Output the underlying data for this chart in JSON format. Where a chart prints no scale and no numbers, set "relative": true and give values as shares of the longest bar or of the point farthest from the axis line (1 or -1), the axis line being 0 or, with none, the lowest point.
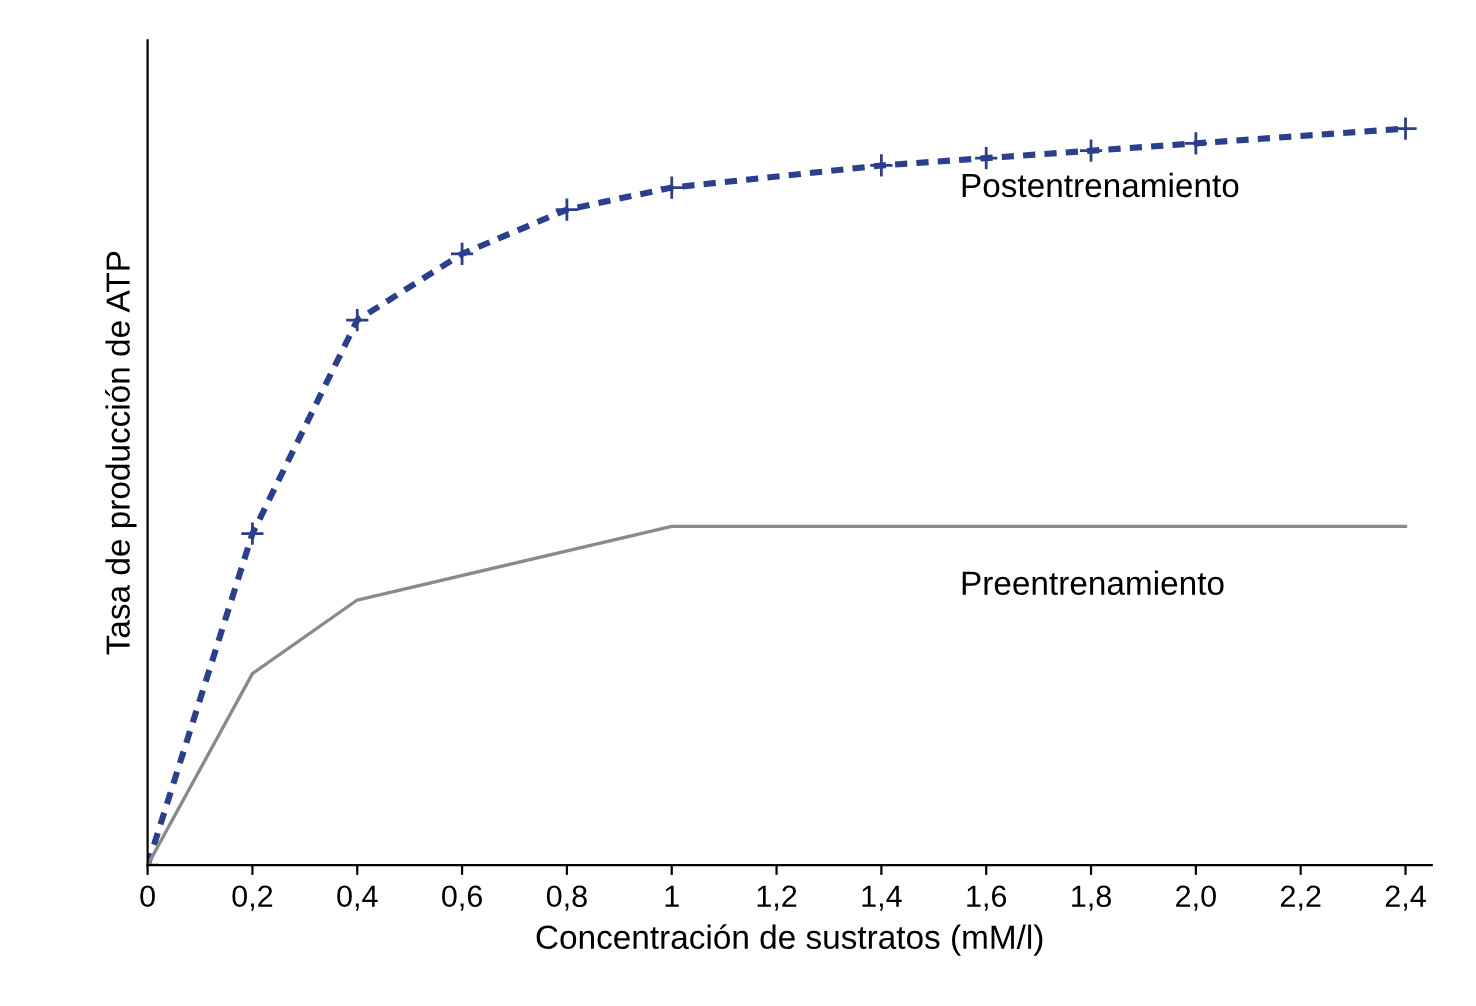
{
  "chart_data": {
    "type": "line",
    "relative": true,
    "xlabel": "Concentración de sustratos (mM/l)",
    "ylabel": "Tasa de producción de ATP",
    "xlim": [
      0,
      2.45
    ],
    "xticks": [
      0,
      {
        "value": 0.2,
        "label": "0,2"
      },
      {
        "value": 0.4,
        "label": "0,4"
      },
      {
        "value": 0.6,
        "label": "0,6"
      },
      {
        "value": 0.8,
        "label": "0,8"
      },
      1,
      {
        "value": 1.2,
        "label": "1,2"
      },
      {
        "value": 1.4,
        "label": "1,4"
      },
      {
        "value": 1.6,
        "label": "1,6"
      },
      {
        "value": 1.8,
        "label": "1,8"
      },
      {
        "value": 2.0,
        "label": "2,0"
      },
      {
        "value": 2.2,
        "label": "2,2"
      },
      {
        "value": 2.4,
        "label": "2,4"
      }
    ],
    "tick_labels": "x",
    "grid": false,
    "legend": false,
    "series": [
      {
        "name": "Postentrenamiento",
        "color": "#2b3f8f",
        "line_style": "dashed",
        "marker": "cross",
        "x": [
          0,
          0.2,
          0.4,
          0.6,
          0.8,
          1.0,
          1.4,
          1.6,
          1.8,
          2.0,
          2.4
        ],
        "values": [
          0,
          0.45,
          0.74,
          0.83,
          0.89,
          0.92,
          0.95,
          0.96,
          0.97,
          0.98,
          1
        ]
      },
      {
        "name": "Preentrenamiento",
        "color": "#8a8a8a",
        "line_style": "solid",
        "marker": "none",
        "x": [
          0,
          0.2,
          0.4,
          1.0,
          2.4
        ],
        "values": [
          0,
          0.26,
          0.36,
          0.46,
          0.46
        ]
      }
    ]
  }
}
